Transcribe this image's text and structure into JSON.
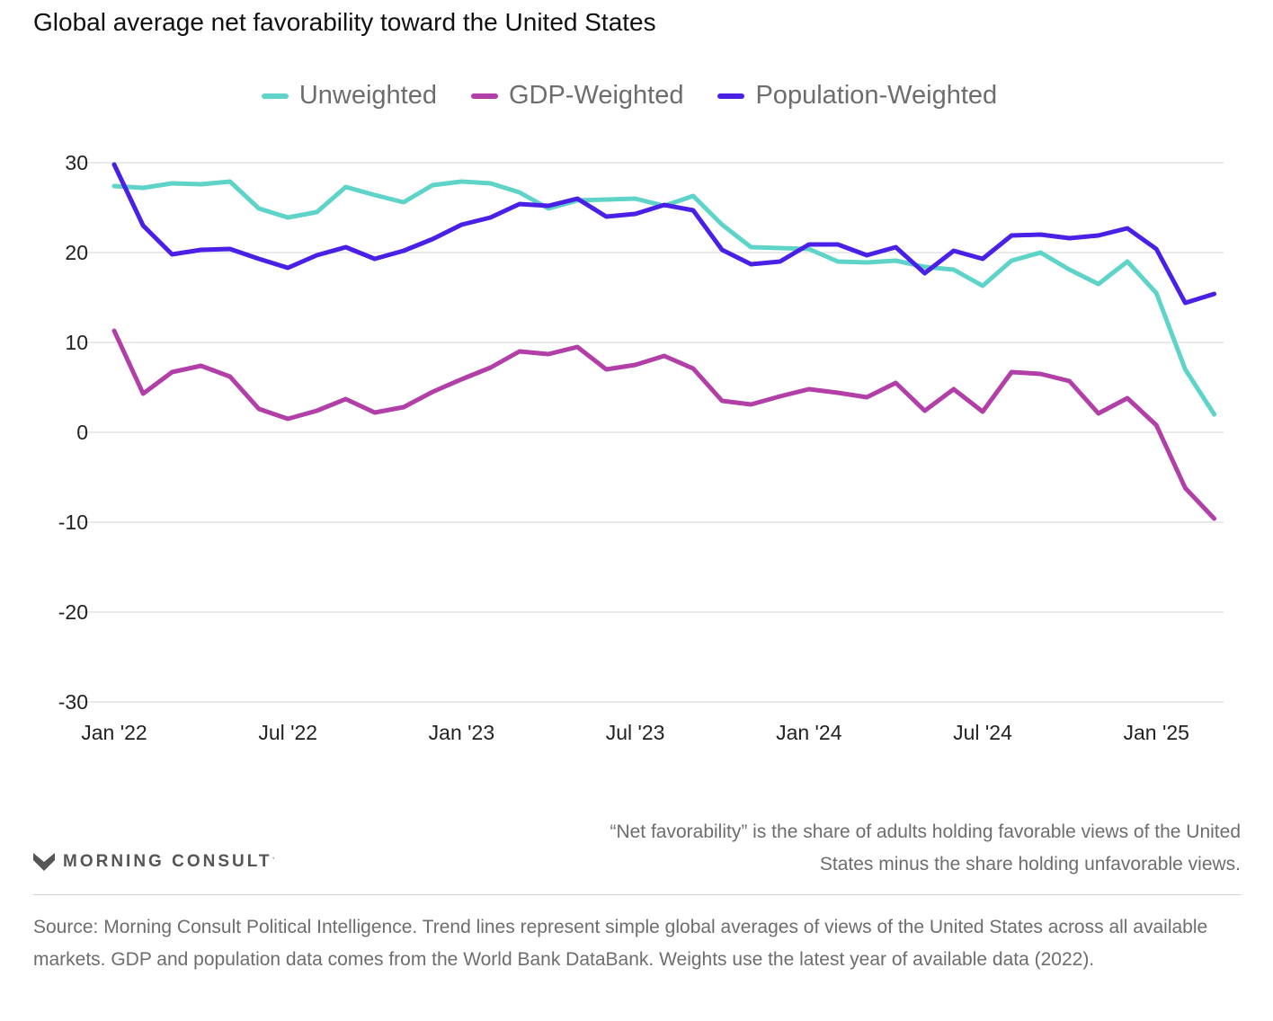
{
  "title": "Global average net favorability toward the United States",
  "colors": {
    "unweighted": "#5ed3c8",
    "gdp": "#b23fa8",
    "population": "#4a1fe6"
  },
  "chart_data": {
    "type": "line",
    "x": [
      "Jan '22",
      "Feb '22",
      "Mar '22",
      "Apr '22",
      "May '22",
      "Jun '22",
      "Jul '22",
      "Aug '22",
      "Sep '22",
      "Oct '22",
      "Nov '22",
      "Dec '22",
      "Jan '23",
      "Feb '23",
      "Mar '23",
      "Apr '23",
      "May '23",
      "Jun '23",
      "Jul '23",
      "Aug '23",
      "Sep '23",
      "Oct '23",
      "Nov '23",
      "Dec '23",
      "Jan '24",
      "Feb '24",
      "Mar '24",
      "Apr '24",
      "May '24",
      "Jun '24",
      "Jul '24",
      "Aug '24",
      "Sep '24",
      "Oct '24",
      "Nov '24",
      "Dec '24",
      "Jan '25",
      "Feb '25",
      "Mar '25"
    ],
    "x_ticks": [
      "Jan '22",
      "Jul '22",
      "Jan '23",
      "Jul '23",
      "Jan '24",
      "Jul '24",
      "Jan '25"
    ],
    "ylim": [
      -30,
      30
    ],
    "y_ticks": [
      30,
      20,
      10,
      0,
      -10,
      -20,
      -30
    ],
    "grid": true,
    "legend_position": "top-center",
    "series": [
      {
        "name": "Unweighted",
        "values": [
          27.4,
          27.2,
          27.7,
          27.6,
          27.9,
          24.9,
          23.9,
          24.5,
          27.3,
          26.4,
          25.6,
          27.5,
          27.9,
          27.7,
          26.7,
          24.9,
          25.8,
          25.9,
          26.0,
          25.2,
          26.3,
          23.1,
          20.6,
          20.5,
          20.4,
          19.0,
          18.9,
          19.1,
          18.4,
          18.1,
          16.3,
          19.1,
          20.0,
          18.1,
          16.5,
          19.0,
          15.5,
          7.0,
          2.0
        ]
      },
      {
        "name": "GDP-Weighted",
        "values": [
          11.3,
          4.3,
          6.7,
          7.4,
          6.2,
          2.6,
          1.5,
          2.4,
          3.7,
          2.2,
          2.8,
          4.5,
          5.9,
          7.2,
          9.0,
          8.7,
          9.5,
          7.0,
          7.5,
          8.5,
          7.1,
          3.5,
          3.1,
          4.0,
          4.8,
          4.4,
          3.9,
          5.5,
          2.4,
          4.8,
          2.3,
          6.7,
          6.5,
          5.7,
          2.1,
          3.8,
          0.8,
          -6.2,
          -9.6
        ]
      },
      {
        "name": "Population-Weighted",
        "values": [
          29.8,
          23.0,
          19.8,
          20.3,
          20.4,
          19.3,
          18.3,
          19.7,
          20.6,
          19.3,
          20.2,
          21.5,
          23.1,
          23.9,
          25.4,
          25.2,
          26.0,
          24.0,
          24.3,
          25.3,
          24.7,
          20.3,
          18.7,
          19.0,
          20.9,
          20.9,
          19.7,
          20.6,
          17.7,
          20.2,
          19.3,
          21.9,
          22.0,
          21.6,
          21.9,
          22.7,
          20.4,
          14.4,
          15.4
        ]
      }
    ]
  },
  "footer": {
    "logo_text": "MORNING CONSULT",
    "logo_mark": "ˋ",
    "note": "“Net favorability” is the share of adults holding favorable views of the United States minus the share holding unfavorable views.",
    "source": "Source: Morning Consult Political Intelligence. Trend lines represent simple global averages of views of the United States across all available markets. GDP and population data comes from the World Bank DataBank. Weights use the latest year of available data (2022)."
  }
}
